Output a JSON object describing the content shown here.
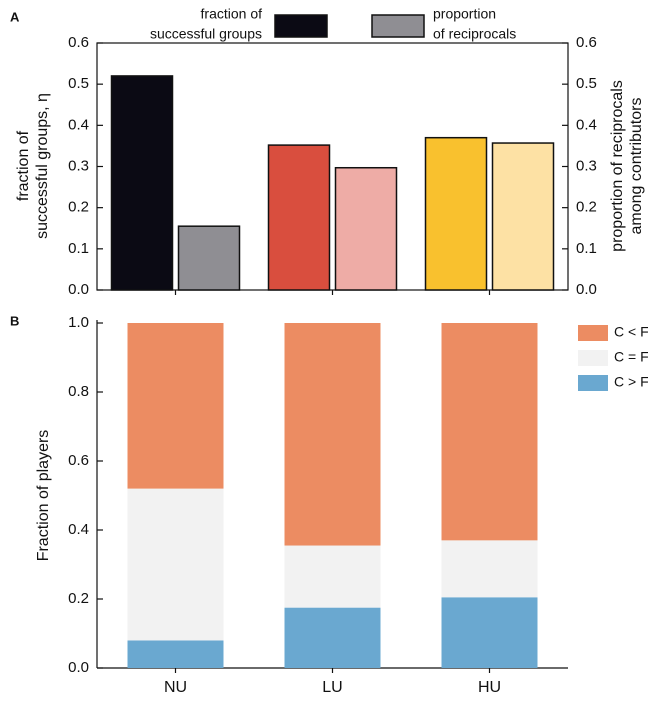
{
  "chart_data": [
    {
      "type": "bar",
      "panel": "A",
      "categories": [
        null,
        null,
        null
      ],
      "ylabel": [
        "fraction of",
        "successful groups, η"
      ],
      "y2label": [
        "proportion of reciprocals",
        "among contributors"
      ],
      "series": [
        {
          "name": [
            "fraction of",
            "successful groups"
          ],
          "color": "#0b0a14",
          "colors": [
            "#0b0a14",
            "#d94e3e",
            "#f9c12e"
          ],
          "values": [
            0.52,
            0.352,
            0.37
          ]
        },
        {
          "name": [
            "proportion",
            "of reciprocals"
          ],
          "color": "#8f8e93",
          "colors": [
            "#8f8e93",
            "#eeaca6",
            "#fde1a4"
          ],
          "values": [
            0.155,
            0.297,
            0.357
          ],
          "axis": "y2"
        }
      ],
      "ylim": [
        0,
        0.6
      ],
      "yticks": [
        {
          "value": 0,
          "label": "0.0"
        },
        0.1,
        0.2,
        0.3,
        0.4,
        0.5,
        0.6
      ],
      "y2lim": [
        0,
        0.6
      ],
      "y2ticks": [
        {
          "value": 0,
          "label": "0.0"
        },
        0.1,
        0.2,
        0.3,
        0.4,
        0.5,
        0.6
      ]
    },
    {
      "type": "stacked-bar",
      "panel": "B",
      "categories": [
        "NU",
        "LU",
        "HU"
      ],
      "ylabel": "Fraction of players",
      "series": [
        {
          "name": "C > F",
          "color": "#6aa8d0",
          "values": [
            0.08,
            0.175,
            0.205
          ]
        },
        {
          "name": "C = F",
          "color": "#f2f2f2",
          "values": [
            0.44,
            0.18,
            0.165
          ]
        },
        {
          "name": "C < F",
          "color": "#ec8c62",
          "values": [
            0.48,
            0.645,
            0.63
          ]
        }
      ],
      "ylim": [
        0,
        1
      ],
      "yticks": [
        {
          "value": 0,
          "label": "0.0"
        },
        0.2,
        0.4,
        0.6,
        0.8,
        {
          "value": 1,
          "label": "1.0"
        }
      ],
      "legend": "upper right"
    }
  ]
}
